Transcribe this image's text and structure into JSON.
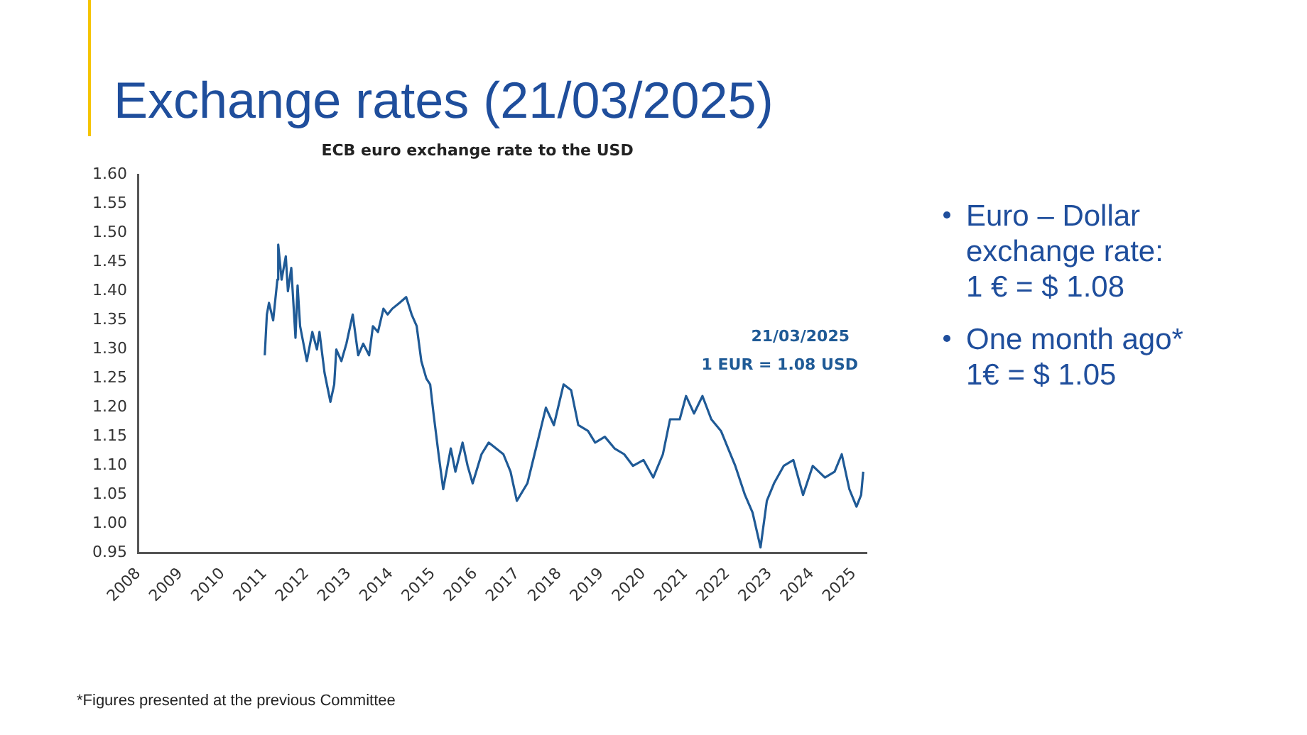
{
  "chart_data": {
    "type": "line",
    "title": "Exchange rates (21/03/2025)",
    "subtitle": "ECB euro exchange rate to the USD",
    "xlim": [
      2008,
      2025.3
    ],
    "xticks": [
      2008,
      2009,
      2010,
      2011,
      2012,
      2013,
      2014,
      2015,
      2016,
      2017,
      2018,
      2019,
      2020,
      2021,
      2022,
      2023,
      2024,
      2025
    ],
    "ylim": [
      0.95,
      1.6
    ],
    "yticks": [
      {
        "value": 0.95,
        "label": "0.95"
      },
      {
        "value": 1,
        "label": "1.00"
      },
      {
        "value": 1.05,
        "label": "1.05"
      },
      {
        "value": 1.1,
        "label": "1.10"
      },
      {
        "value": 1.15,
        "label": "1.15"
      },
      {
        "value": 1.2,
        "label": "1.20"
      },
      {
        "value": 1.25,
        "label": "1.25"
      },
      {
        "value": 1.3,
        "label": "1.30"
      },
      {
        "value": 1.35,
        "label": "1.35"
      },
      {
        "value": 1.4,
        "label": "1.40"
      },
      {
        "value": 1.45,
        "label": "1.45"
      },
      {
        "value": 1.5,
        "label": "1.50"
      },
      {
        "value": 1.55,
        "label": "1.55"
      },
      {
        "value": 1.6,
        "label": "1.60"
      }
    ],
    "grid": false,
    "legend": false,
    "marker": "none",
    "line_style": "solid",
    "series": [
      {
        "color": "#1f5a96",
        "x": [
          2011.0,
          2011.05,
          2011.1,
          2011.2,
          2011.3,
          2011.32,
          2011.4,
          2011.5,
          2011.55,
          2011.63,
          2011.73,
          2011.78,
          2011.84,
          2012.0,
          2012.13,
          2012.24,
          2012.3,
          2012.42,
          2012.56,
          2012.65,
          2012.7,
          2012.82,
          2012.94,
          2013.09,
          2013.22,
          2013.34,
          2013.48,
          2013.57,
          2013.69,
          2013.82,
          2013.92,
          2014.03,
          2014.2,
          2014.36,
          2014.49,
          2014.61,
          2014.72,
          2014.84,
          2014.93,
          2015.01,
          2015.13,
          2015.24,
          2015.42,
          2015.53,
          2015.7,
          2015.82,
          2015.94,
          2016.15,
          2016.32,
          2016.67,
          2016.84,
          2016.99,
          2017.24,
          2017.41,
          2017.68,
          2017.87,
          2018.1,
          2018.28,
          2018.45,
          2018.68,
          2018.85,
          2019.08,
          2019.31,
          2019.54,
          2019.75,
          2020.0,
          2020.23,
          2020.46,
          2020.63,
          2020.86,
          2021.01,
          2021.2,
          2021.4,
          2021.61,
          2021.84,
          2022.01,
          2022.18,
          2022.41,
          2022.59,
          2022.78,
          2022.93,
          2023.1,
          2023.33,
          2023.56,
          2023.79,
          2024.02,
          2024.31,
          2024.54,
          2024.71,
          2024.89,
          2025.06,
          2025.17,
          2025.22
        ],
        "values": [
          1.29,
          1.36,
          1.38,
          1.35,
          1.42,
          1.48,
          1.42,
          1.46,
          1.4,
          1.44,
          1.32,
          1.41,
          1.34,
          1.28,
          1.33,
          1.3,
          1.33,
          1.26,
          1.21,
          1.24,
          1.3,
          1.28,
          1.31,
          1.36,
          1.29,
          1.31,
          1.29,
          1.34,
          1.33,
          1.37,
          1.36,
          1.37,
          1.38,
          1.39,
          1.36,
          1.34,
          1.28,
          1.25,
          1.24,
          1.19,
          1.12,
          1.06,
          1.13,
          1.09,
          1.14,
          1.1,
          1.07,
          1.12,
          1.14,
          1.12,
          1.09,
          1.04,
          1.07,
          1.12,
          1.2,
          1.17,
          1.24,
          1.23,
          1.17,
          1.16,
          1.14,
          1.15,
          1.13,
          1.12,
          1.1,
          1.11,
          1.08,
          1.12,
          1.18,
          1.18,
          1.22,
          1.19,
          1.22,
          1.18,
          1.16,
          1.13,
          1.1,
          1.05,
          1.02,
          0.96,
          1.04,
          1.07,
          1.1,
          1.11,
          1.05,
          1.1,
          1.08,
          1.09,
          1.12,
          1.06,
          1.03,
          1.05,
          1.09
        ]
      }
    ],
    "annotations": [
      "21/03/2025\n1 EUR = 1.08 USD",
      "Euro – Dollar\nexchange rate:\n 1 € = $ 1.08",
      "One month ago*\n1€ = $ 1.05",
      "*Figures presented at the previous Committee"
    ]
  }
}
